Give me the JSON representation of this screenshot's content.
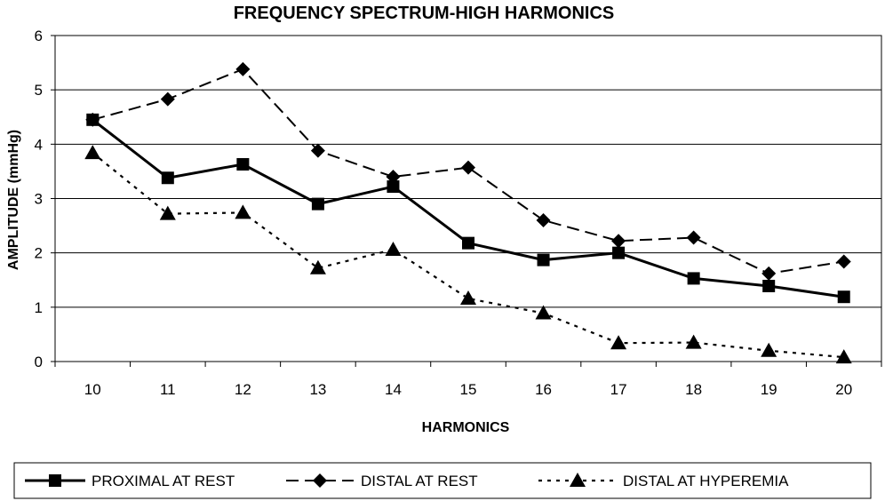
{
  "chart_data": {
    "type": "line",
    "title": "FREQUENCY SPECTRUM-HIGH HARMONICS",
    "xlabel": "HARMONICS",
    "ylabel": "AMPLITUDE (mmHg)",
    "categories": [
      "10",
      "11",
      "12",
      "13",
      "14",
      "15",
      "16",
      "17",
      "18",
      "19",
      "20"
    ],
    "ylim": [
      0,
      6
    ],
    "yticks": [
      "0",
      "1",
      "2",
      "3",
      "4",
      "5",
      "6"
    ],
    "grid": true,
    "legend_position": "bottom",
    "series": [
      {
        "name": "PROXIMAL AT REST",
        "marker": "square",
        "line": "solid",
        "color": "#000000",
        "values": [
          4.45,
          3.38,
          3.63,
          2.9,
          3.22,
          2.18,
          1.87,
          2.0,
          1.53,
          1.39,
          1.19
        ]
      },
      {
        "name": "DISTAL AT REST",
        "marker": "diamond",
        "line": "dashed",
        "color": "#000000",
        "values": [
          4.45,
          4.83,
          5.38,
          3.88,
          3.4,
          3.57,
          2.6,
          2.22,
          2.28,
          1.62,
          1.84
        ]
      },
      {
        "name": "DISTAL AT HYPEREMIA",
        "marker": "triangle",
        "line": "dotted",
        "color": "#000000",
        "values": [
          3.84,
          2.72,
          2.74,
          1.72,
          2.06,
          1.16,
          0.89,
          0.34,
          0.35,
          0.2,
          0.08
        ]
      }
    ]
  }
}
